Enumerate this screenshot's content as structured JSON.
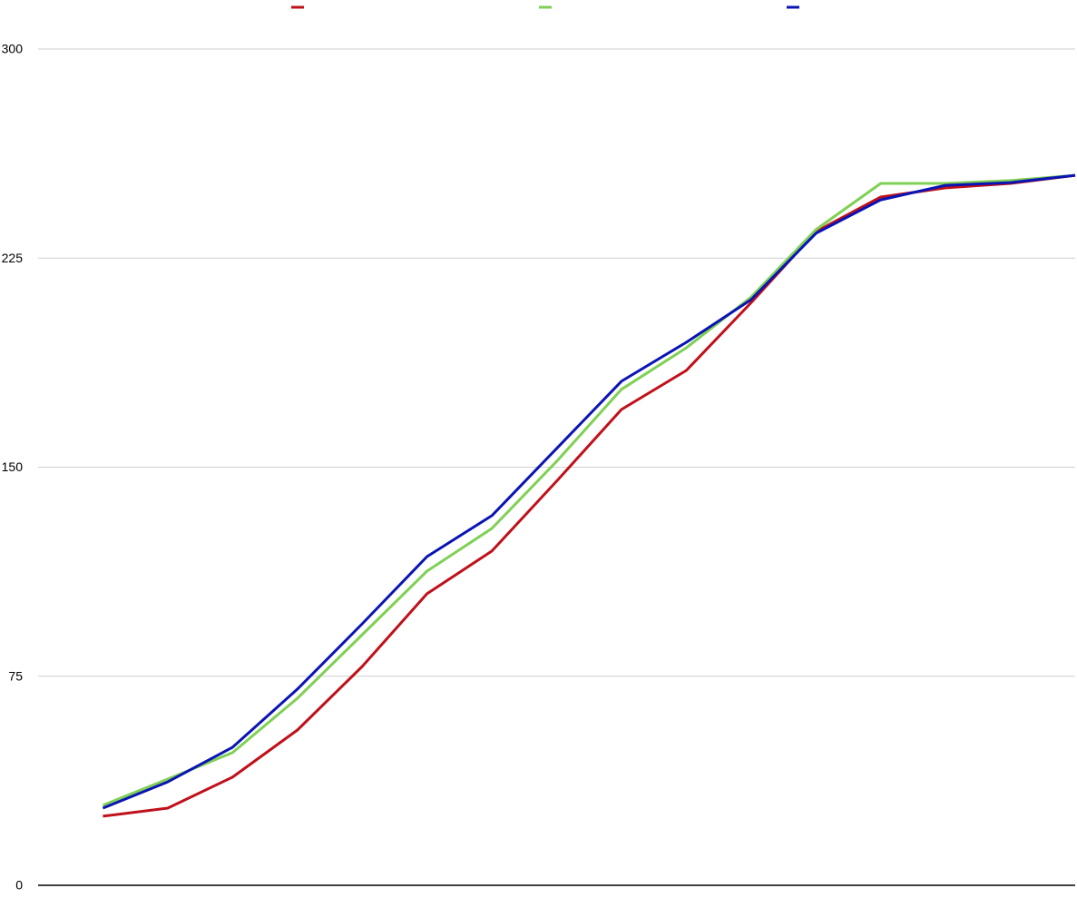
{
  "chart_data": {
    "type": "line",
    "categories": [
      null,
      null,
      null,
      null,
      null,
      null,
      null,
      null,
      null,
      null,
      null,
      null,
      null,
      null,
      null,
      null
    ],
    "series": [
      {
        "color": "#c0101a",
        "values": [
          24.8,
          27.7,
          38.8,
          55.7,
          78.5,
          104.6,
          119.9,
          145.0,
          170.7,
          184.7,
          209.0,
          234.5,
          246.9,
          250.2,
          251.8,
          254.7
        ]
      },
      {
        "color": "#7fd054",
        "values": [
          28.7,
          38.1,
          47.6,
          67.1,
          89.9,
          112.7,
          128.0,
          152.1,
          177.9,
          192.8,
          211.0,
          235.2,
          251.8,
          251.8,
          252.8,
          254.7
        ]
      },
      {
        "color": "#0a14b4",
        "values": [
          27.7,
          37.1,
          49.5,
          70.4,
          93.8,
          117.9,
          132.6,
          156.7,
          180.8,
          194.8,
          210.1,
          233.9,
          245.9,
          251.1,
          252.1,
          254.7
        ]
      }
    ],
    "ylim": [
      0,
      300
    ],
    "yticks": [
      0,
      75,
      150,
      225,
      300
    ],
    "grid": true
  }
}
